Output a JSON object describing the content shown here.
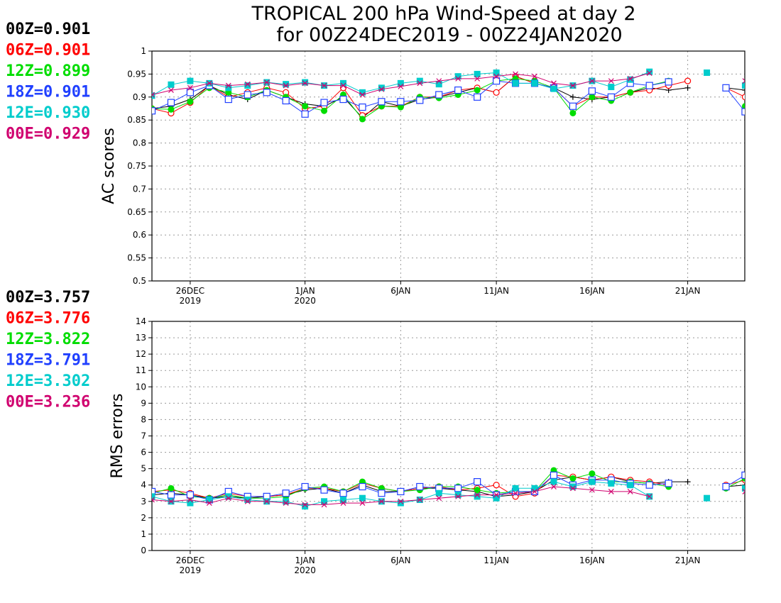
{
  "title": {
    "line1": "TROPICAL 200 hPa Wind-Speed at day 2",
    "line2": "for 00Z24DEC2019 - 00Z24JAN2020"
  },
  "colors": {
    "00Z": "#000000",
    "06Z": "#ff0000",
    "12Z": "#00dd00",
    "18Z": "#2040ff",
    "12E": "#00cccc",
    "00E": "#d0006f"
  },
  "chart_data": [
    {
      "type": "line",
      "ylabel": "AC scores",
      "ylim": [
        0.5,
        1
      ],
      "yticks": [
        "0.5",
        "0.55",
        "0.6",
        "0.65",
        "0.7",
        "0.75",
        "0.8",
        "0.85",
        "0.9",
        "0.95",
        "1"
      ],
      "xticks": [
        {
          "day": 2,
          "line1": "26DEC",
          "line2": "2019"
        },
        {
          "day": 8,
          "line1": "1JAN",
          "line2": "2020"
        },
        {
          "day": 13,
          "line1": "6JAN",
          "line2": ""
        },
        {
          "day": 18,
          "line1": "11JAN",
          "line2": ""
        },
        {
          "day": 23,
          "line1": "16JAN",
          "line2": ""
        },
        {
          "day": 28,
          "line1": "21JAN",
          "line2": ""
        }
      ],
      "x_start": "24DEC2019",
      "x_end": "24JAN2020",
      "grid": true,
      "legend": [
        {
          "key": "00Z",
          "text": "00Z=0.901"
        },
        {
          "key": "06Z",
          "text": "06Z=0.901"
        },
        {
          "key": "12Z",
          "text": "12Z=0.899"
        },
        {
          "key": "18Z",
          "text": "18Z=0.901"
        },
        {
          "key": "12E",
          "text": "12E=0.930"
        },
        {
          "key": "00E",
          "text": "00E=0.929"
        }
      ],
      "series": [
        {
          "name": "00Z",
          "marker": "plus",
          "values": [
            0.875,
            0.88,
            0.895,
            0.925,
            0.905,
            0.895,
            0.915,
            0.9,
            0.885,
            0.88,
            0.9,
            0.855,
            0.89,
            0.88,
            0.895,
            0.9,
            0.91,
            0.92,
            0.91,
            0.945,
            0.93,
            0.92,
            0.9,
            0.895,
            0.9,
            0.91,
            0.92,
            0.915,
            0.92,
            null,
            0.92,
            0.915,
            0.88,
            0.895
          ]
        },
        {
          "name": "06Z",
          "marker": "circle",
          "values": [
            0.875,
            0.865,
            0.888,
            0.925,
            0.9,
            0.91,
            0.92,
            0.91,
            0.875,
            0.88,
            0.92,
            0.86,
            0.88,
            0.88,
            0.9,
            0.9,
            0.915,
            0.92,
            0.91,
            0.945,
            0.93,
            0.92,
            0.88,
            0.9,
            0.9,
            0.91,
            0.915,
            0.925,
            0.935,
            null,
            0.92,
            0.9,
            0.88,
            null
          ]
        },
        {
          "name": "12Z",
          "marker": "dot",
          "values": [
            0.875,
            0.873,
            0.89,
            0.92,
            0.91,
            0.9,
            0.915,
            0.9,
            0.88,
            0.87,
            0.905,
            0.852,
            0.88,
            0.878,
            0.9,
            0.898,
            0.905,
            0.915,
            0.935,
            0.94,
            0.935,
            0.92,
            0.865,
            0.9,
            0.892,
            0.91,
            0.925,
            0.935,
            null,
            null,
            null,
            0.88,
            0.885,
            null
          ]
        },
        {
          "name": "18Z",
          "marker": "square",
          "values": [
            0.87,
            0.888,
            0.91,
            0.925,
            0.895,
            0.905,
            0.91,
            0.892,
            0.863,
            0.888,
            0.895,
            0.878,
            0.89,
            0.89,
            0.893,
            0.905,
            0.915,
            0.9,
            0.935,
            0.93,
            0.93,
            0.92,
            0.88,
            0.913,
            0.9,
            0.93,
            0.925,
            0.933,
            null,
            null,
            0.92,
            0.868,
            0.895,
            null
          ]
        },
        {
          "name": "12E",
          "marker": "filled-square",
          "values": [
            0.903,
            0.927,
            0.935,
            0.93,
            0.92,
            0.925,
            0.932,
            0.928,
            0.932,
            0.925,
            0.93,
            0.91,
            0.92,
            0.93,
            0.935,
            0.928,
            0.945,
            0.95,
            0.953,
            0.93,
            0.93,
            0.918,
            0.925,
            0.935,
            0.922,
            0.938,
            0.955,
            null,
            null,
            0.953,
            null,
            0.925,
            0.932,
            null
          ]
        },
        {
          "name": "00E",
          "marker": "cross",
          "values": [
            0.905,
            0.915,
            0.92,
            0.93,
            0.925,
            0.928,
            0.932,
            0.925,
            0.93,
            0.925,
            0.925,
            0.905,
            0.917,
            0.923,
            0.93,
            0.935,
            0.94,
            0.94,
            0.945,
            0.95,
            0.945,
            0.93,
            0.925,
            0.935,
            0.935,
            0.94,
            0.952,
            null,
            null,
            null,
            null,
            0.935,
            0.922,
            0.937
          ]
        }
      ]
    },
    {
      "type": "line",
      "ylabel": "RMS errors",
      "ylim": [
        0,
        14
      ],
      "yticks": [
        "0",
        "1",
        "2",
        "3",
        "4",
        "5",
        "6",
        "7",
        "8",
        "9",
        "10",
        "11",
        "12",
        "13",
        "14"
      ],
      "xticks": [
        {
          "day": 2,
          "line1": "26DEC",
          "line2": "2019"
        },
        {
          "day": 8,
          "line1": "1JAN",
          "line2": "2020"
        },
        {
          "day": 13,
          "line1": "6JAN",
          "line2": ""
        },
        {
          "day": 18,
          "line1": "11JAN",
          "line2": ""
        },
        {
          "day": 23,
          "line1": "16JAN",
          "line2": ""
        },
        {
          "day": 28,
          "line1": "21JAN",
          "line2": ""
        }
      ],
      "x_start": "24DEC2019",
      "x_end": "24JAN2020",
      "grid": true,
      "legend": [
        {
          "key": "00Z",
          "text": "00Z=3.757"
        },
        {
          "key": "06Z",
          "text": "06Z=3.776"
        },
        {
          "key": "12Z",
          "text": "12Z=3.822"
        },
        {
          "key": "18Z",
          "text": "18Z=3.791"
        },
        {
          "key": "12E",
          "text": "12E=3.302"
        },
        {
          "key": "00E",
          "text": "00E=3.236"
        }
      ],
      "series": [
        {
          "name": "00Z",
          "marker": "plus",
          "values": [
            3.4,
            3.5,
            3.4,
            3.2,
            3.3,
            3.2,
            3.3,
            3.4,
            3.7,
            3.8,
            3.5,
            4.0,
            3.6,
            3.6,
            3.8,
            3.8,
            3.7,
            3.6,
            3.3,
            3.4,
            3.6,
            4.3,
            4.5,
            4.3,
            4.5,
            4.2,
            4.1,
            4.2,
            4.2,
            null,
            3.9,
            4.0,
            4.3,
            4.2
          ]
        },
        {
          "name": "06Z",
          "marker": "circle",
          "values": [
            3.6,
            3.7,
            3.5,
            3.2,
            3.5,
            3.3,
            3.3,
            3.4,
            3.8,
            3.8,
            3.6,
            4.1,
            3.8,
            3.6,
            3.8,
            3.9,
            3.7,
            3.8,
            4.0,
            3.3,
            3.5,
            4.6,
            4.5,
            4.3,
            4.5,
            4.3,
            4.2,
            4.0,
            null,
            null,
            4.0,
            4.3,
            4.4,
            null
          ]
        },
        {
          "name": "12Z",
          "marker": "dot",
          "values": [
            3.5,
            3.8,
            3.3,
            3.2,
            3.4,
            3.2,
            3.2,
            3.3,
            3.8,
            3.9,
            3.6,
            4.2,
            3.8,
            3.6,
            3.7,
            3.9,
            3.9,
            3.7,
            3.5,
            3.6,
            3.6,
            4.9,
            4.4,
            4.7,
            4.2,
            4.2,
            4.1,
            3.9,
            null,
            null,
            3.8,
            4.4,
            4.5,
            null
          ]
        },
        {
          "name": "18Z",
          "marker": "square",
          "values": [
            3.6,
            3.4,
            3.4,
            3.1,
            3.6,
            3.3,
            3.3,
            3.5,
            3.9,
            3.7,
            3.5,
            3.9,
            3.5,
            3.6,
            3.9,
            3.8,
            3.8,
            4.2,
            3.4,
            3.6,
            3.6,
            4.6,
            4.0,
            4.3,
            4.3,
            4.1,
            4.0,
            4.1,
            null,
            null,
            3.9,
            4.6,
            4.3,
            null
          ]
        },
        {
          "name": "12E",
          "marker": "filled-square",
          "values": [
            3.3,
            3.0,
            2.9,
            3.1,
            3.3,
            3.1,
            3.0,
            3.0,
            2.7,
            3.0,
            3.1,
            3.2,
            3.0,
            2.9,
            3.1,
            3.5,
            3.4,
            3.3,
            3.2,
            3.8,
            3.8,
            4.2,
            3.9,
            4.2,
            4.1,
            4.0,
            3.3,
            null,
            null,
            3.2,
            null,
            3.8,
            3.6,
            null
          ]
        },
        {
          "name": "00E",
          "marker": "cross",
          "values": [
            3.1,
            3.0,
            3.1,
            2.9,
            3.2,
            3.0,
            3.0,
            2.9,
            2.8,
            2.8,
            2.9,
            2.9,
            3.0,
            3.0,
            3.1,
            3.2,
            3.3,
            3.4,
            3.4,
            3.5,
            3.6,
            3.9,
            3.8,
            3.7,
            3.6,
            3.6,
            3.3,
            null,
            null,
            null,
            null,
            3.6,
            3.6,
            3.4
          ]
        }
      ]
    }
  ]
}
